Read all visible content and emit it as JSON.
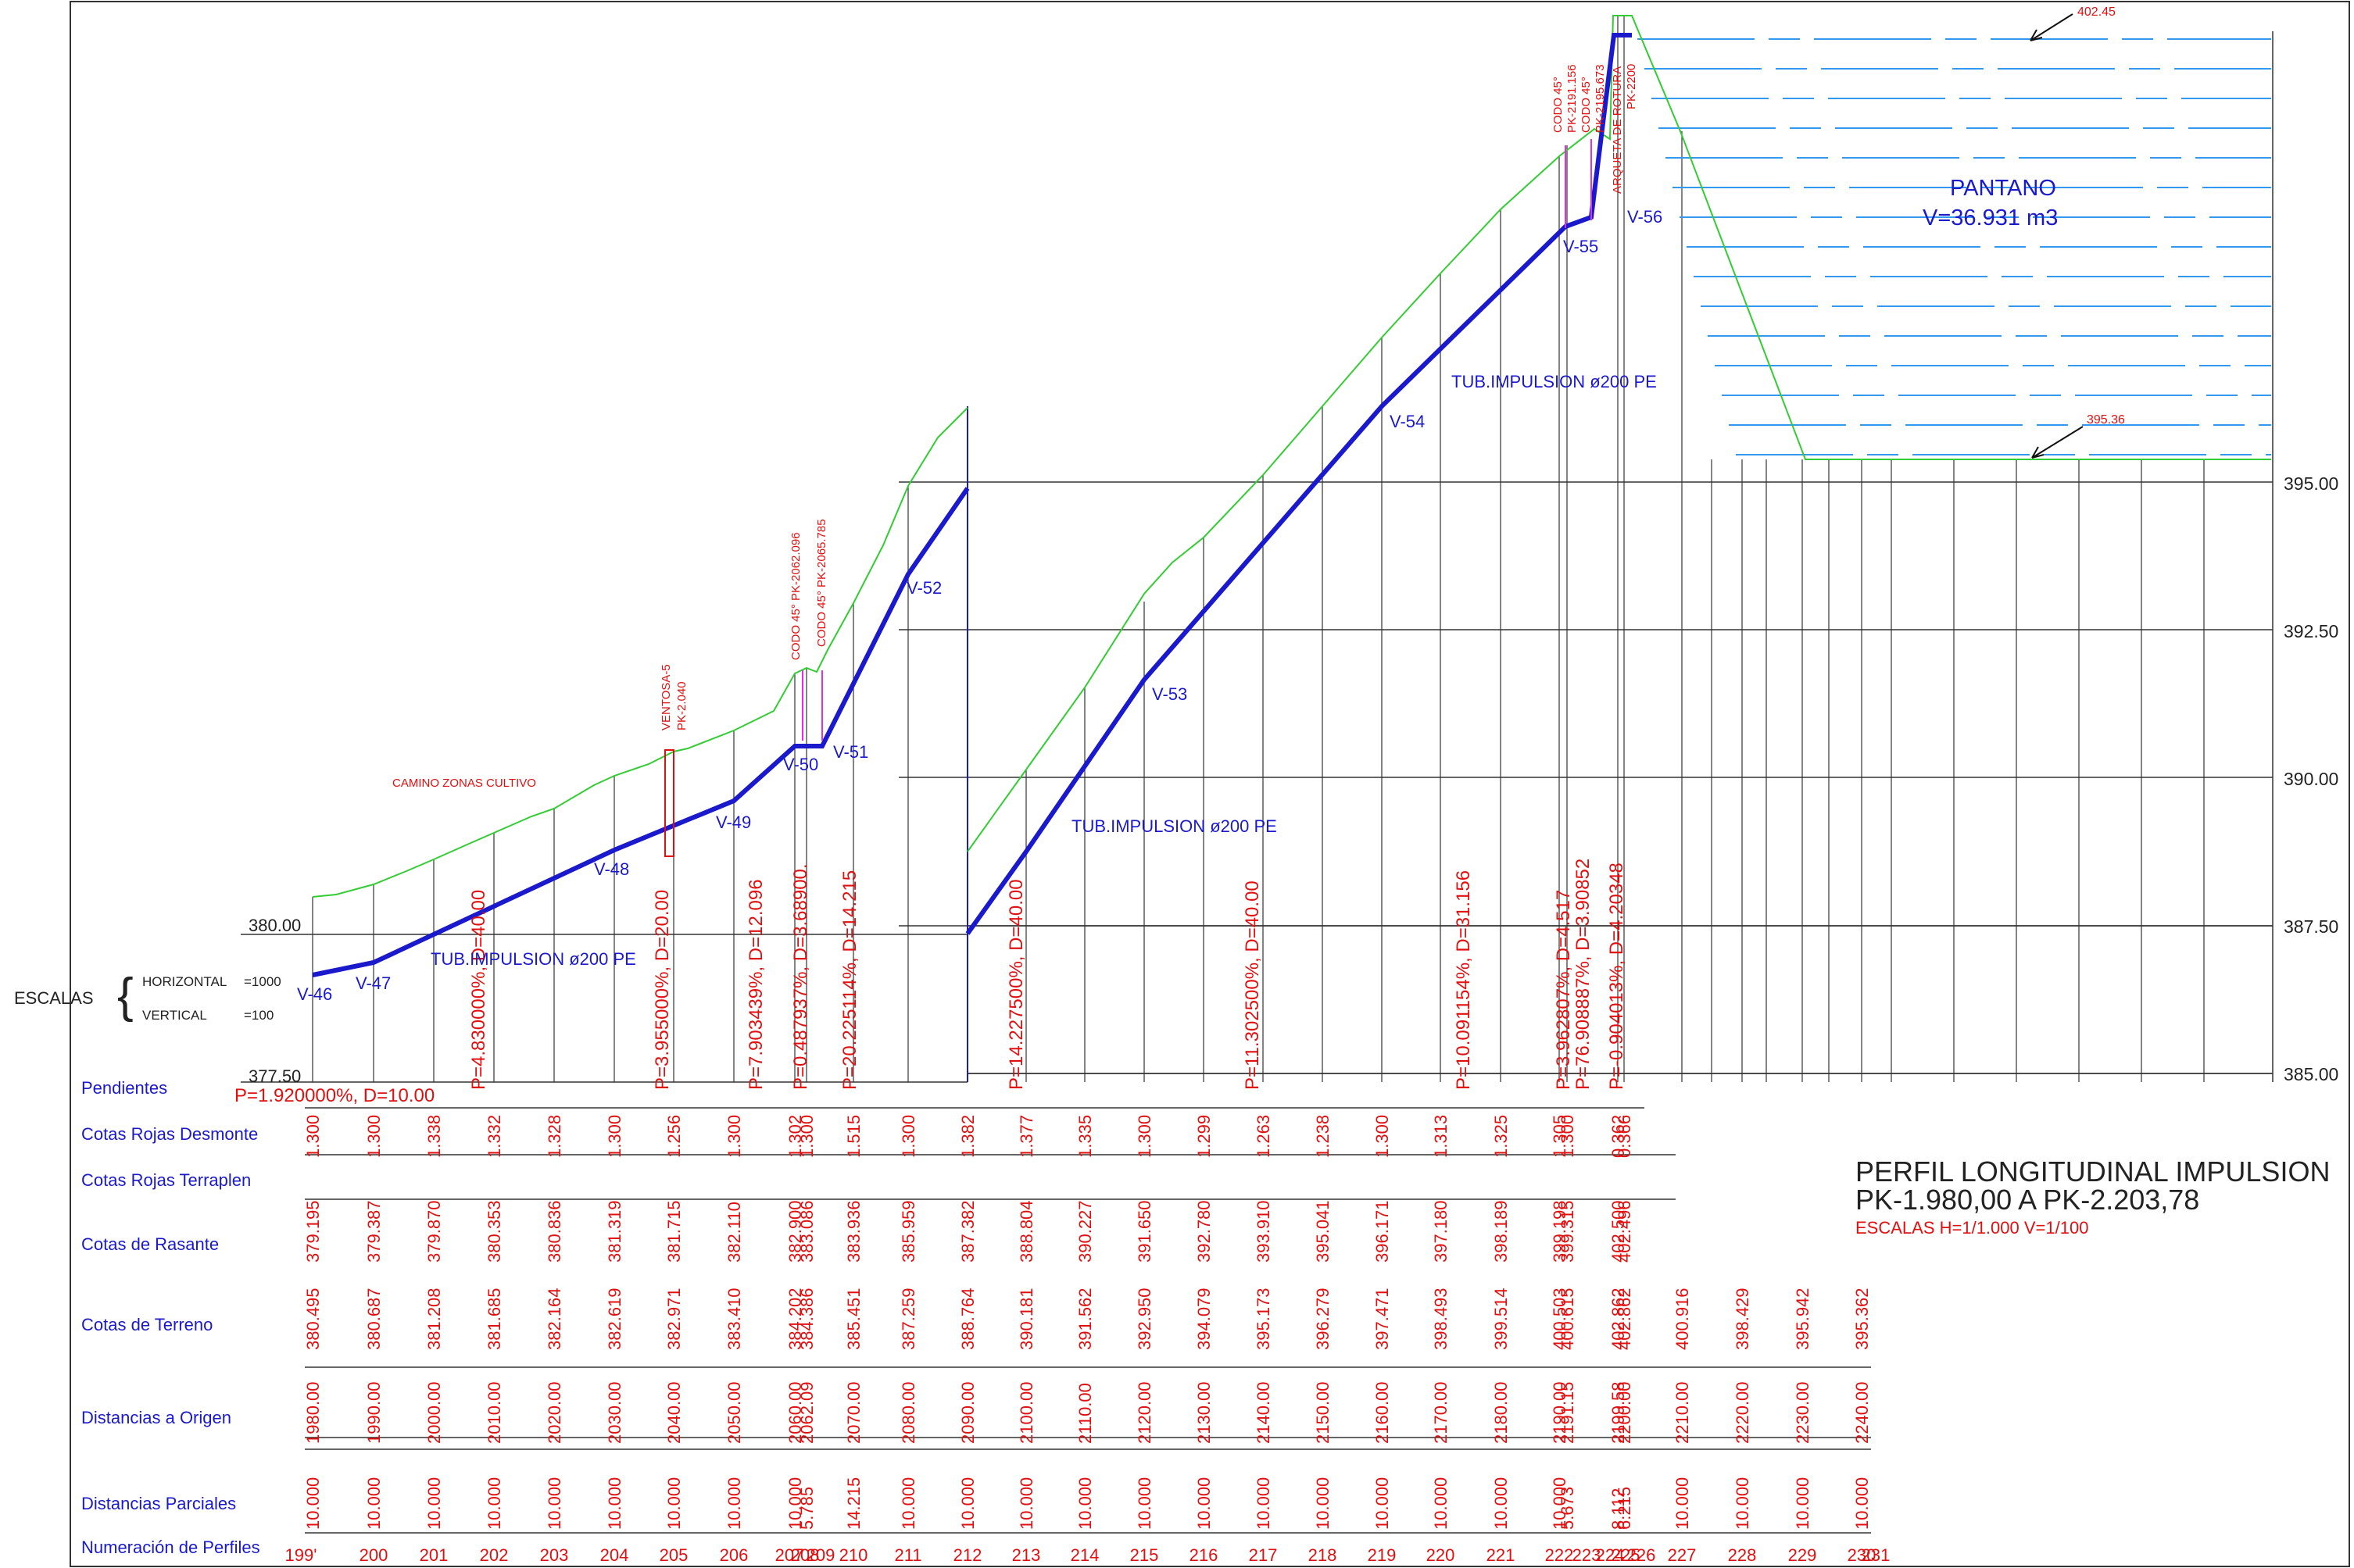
{
  "colors": {
    "terrain": "#33cc33",
    "pipe": "#1a1acc",
    "red_text": "#e01010",
    "blue_text": "#1a1acc",
    "water": "#3399ee",
    "magenta": "#dd33dd",
    "grid": "#333333"
  },
  "title": {
    "line1": "PERFIL LONGITUDINAL IMPULSION",
    "line2": "PK-1.980,00 A PK-2.203,78",
    "line3": "ESCALAS H=1/1.000 V=1/100"
  },
  "scales": {
    "label": "ESCALAS",
    "horizontal": "HORIZONTAL",
    "horizontal_value": "=1000",
    "vertical": "VERTICAL",
    "vertical_value": "=100"
  },
  "left_axis": [
    "380.00",
    "377.50"
  ],
  "right_axis": [
    "395.00",
    "392.50",
    "390.00",
    "387.50",
    "385.00"
  ],
  "pantano": {
    "name": "PANTANO",
    "volume": "V=36.931  m3",
    "level_top": "402.45",
    "level_bottom": "395.36"
  },
  "pipe_labels": [
    "TUB.IMPULSION  ø200  PE",
    "TUB.IMPULSION  ø200  PE",
    "TUB.IMPULSION  ø200  PE"
  ],
  "vertices": [
    "V-46",
    "V-47",
    "V-48",
    "V-49",
    "V-50",
    "V-51",
    "V-52",
    "V-53",
    "V-54",
    "V-55",
    "V-56"
  ],
  "annotations": {
    "camino": "CAMINO  ZONAS  CULTIVO",
    "ventosa": "VENTOSA-5",
    "ventosa_pk": "PK-2.040",
    "codo1": "CODO  45°  PK-2062.096",
    "codo2": "CODO  45°  PK-2065.785",
    "codo3": "CODO  45°",
    "codo3_pk": "PK-2191.156",
    "codo4": "CODO  45°",
    "codo4_pk": "PK-2195.673",
    "arqueta": "ARQUETA  DE  ROTURA",
    "arqueta_pk": "PK-2200"
  },
  "slopes": [
    "P=1.920000%,  D=10.00",
    "P=4.830000%,  D=40.00",
    "P=3.955000%,  D=20.00",
    "P=7.903439%,  D=12.096",
    "P=0.487937%,  D=3.68900.",
    "P=20.225114%,  D=14.215",
    "P=14.227500%,  D=40.00",
    "P=11.302500%,  D=40.00",
    "P=10.091154%,  D=31.156",
    "P=3.962807%,  D=4.517",
    "P=76.908887%,  D=3.90852",
    "P=-0.904013%,  D=4.20348"
  ],
  "table": {
    "rows": [
      "Pendientes",
      "Cotas Rojas Desmonte",
      "Cotas Rojas Terraplen",
      "Cotas de Rasante",
      "Cotas de Terreno",
      "Distancias a Origen",
      "Distancias Parciales",
      "Numeración de Perfiles"
    ],
    "desmonte": [
      "1.300",
      "1.300",
      "1.338",
      "1.332",
      "1.328",
      "1.300",
      "1.256",
      "1.300",
      "1.302",
      "1.300",
      "1.515",
      "1.300",
      "1.382",
      "1.377",
      "1.335",
      "1.300",
      "1.299",
      "1.263",
      "1.238",
      "1.300",
      "1.313",
      "1.325",
      "1.305",
      "1.300",
      "0.362",
      "0.366"
    ],
    "rasante": [
      "379.195",
      "379.387",
      "379.870",
      "380.353",
      "380.836",
      "381.319",
      "381.715",
      "382.110",
      "382.900",
      "383.086",
      "383.936",
      "385.959",
      "387.382",
      "388.804",
      "390.227",
      "391.650",
      "392.780",
      "393.910",
      "395.041",
      "396.171",
      "397.180",
      "398.189",
      "399.198",
      "399.315",
      "402.500",
      "402.496"
    ],
    "terreno": [
      "380.495",
      "380.687",
      "381.208",
      "381.685",
      "382.164",
      "382.619",
      "382.971",
      "383.410",
      "384.202",
      "384.386",
      "385.451",
      "387.259",
      "388.764",
      "390.181",
      "391.562",
      "392.950",
      "394.079",
      "395.173",
      "396.279",
      "397.471",
      "398.493",
      "399.514",
      "400.503",
      "400.615",
      "402.862",
      "402.862",
      "400.916",
      "398.429",
      "395.942",
      "395.362"
    ],
    "origen": [
      "1980.00",
      "1990.00",
      "2000.00",
      "2010.00",
      "2020.00",
      "2030.00",
      "2040.00",
      "2050.00",
      "2060.00",
      "2062.09",
      "2070.00",
      "2080.00",
      "2090.00",
      "2100.00",
      "2110.00",
      "2120.00",
      "2130.00",
      "2140.00",
      "2150.00",
      "2160.00",
      "2170.00",
      "2180.00",
      "2190.00",
      "2191.15",
      "2199.58",
      "2200.00",
      "2210.00",
      "2220.00",
      "2230.00",
      "2240.00"
    ],
    "parciales": [
      "10.000",
      "10.000",
      "10.000",
      "10.000",
      "10.000",
      "10.000",
      "10.000",
      "10.000",
      "10.000",
      "5.785",
      "14.215",
      "10.000",
      "10.000",
      "10.000",
      "10.000",
      "10.000",
      "10.000",
      "10.000",
      "10.000",
      "10.000",
      "10.000",
      "10.000",
      "10.000",
      "5.673",
      "8.112",
      "6.215",
      "10.000",
      "10.000",
      "10.000",
      "10.000"
    ],
    "perfiles": [
      "199'",
      "200",
      "201",
      "202",
      "203",
      "204",
      "205",
      "206",
      "207",
      "208",
      "209",
      "210",
      "211",
      "212",
      "213",
      "214",
      "215",
      "216",
      "217",
      "218",
      "219",
      "220",
      "221",
      "222",
      "223",
      "224",
      "225",
      "226",
      "227",
      "228",
      "229",
      "230",
      "231"
    ]
  }
}
